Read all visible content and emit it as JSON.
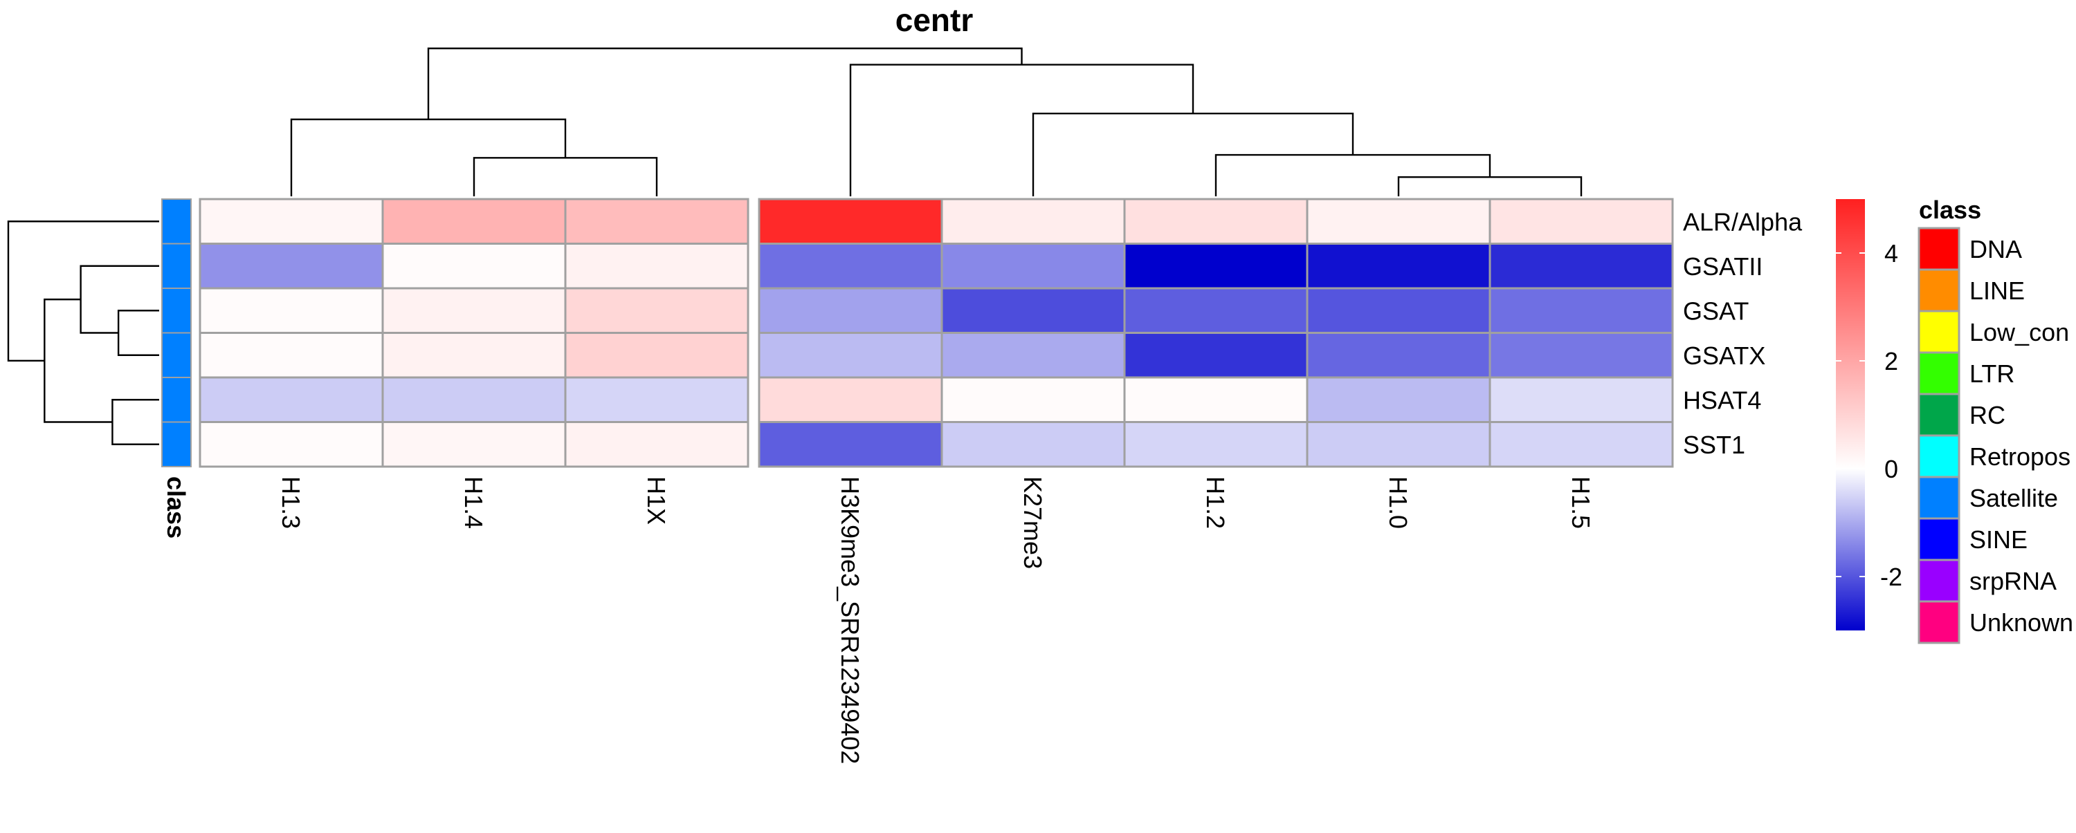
{
  "chart_data": {
    "type": "heatmap",
    "title": "centr",
    "rows": [
      "ALR/Alpha",
      "GSATII",
      "GSAT",
      "GSATX",
      "HSAT4",
      "SST1"
    ],
    "column_groups": [
      [
        "H1.3",
        "H1.4",
        "H1X"
      ],
      [
        "H3K9me3_SRR12349402",
        "K27me3",
        "H1.2",
        "H1.0",
        "H1.5"
      ]
    ],
    "columns": [
      "H1.3",
      "H1.4",
      "H1X",
      "H3K9me3_SRR12349402",
      "K27me3",
      "H1.2",
      "H1.0",
      "H1.5"
    ],
    "values": [
      [
        0.2,
        1.7,
        1.5,
        4.8,
        0.4,
        0.7,
        0.3,
        0.6
      ],
      [
        -1.3,
        0.1,
        0.3,
        -1.7,
        -1.4,
        -3.0,
        -2.8,
        -2.5
      ],
      [
        0.1,
        0.3,
        0.9,
        -1.1,
        -2.1,
        -1.9,
        -2.0,
        -1.7
      ],
      [
        0.1,
        0.3,
        1.0,
        -0.8,
        -1.0,
        -2.4,
        -1.8,
        -1.6
      ],
      [
        -0.6,
        -0.6,
        -0.5,
        0.8,
        0.1,
        0.1,
        -0.8,
        -0.4
      ],
      [
        0.1,
        0.2,
        0.3,
        -1.9,
        -0.6,
        -0.5,
        -0.6,
        -0.5
      ]
    ],
    "row_annotation": {
      "name": "class",
      "values": [
        "Satellite",
        "Satellite",
        "Satellite",
        "Satellite",
        "Satellite",
        "Satellite"
      ]
    },
    "color_scale": {
      "min": -3,
      "max": 5,
      "ticks": [
        -2,
        0,
        2,
        4
      ],
      "colors": [
        "#0000cd",
        "#ffffff",
        "#ff2020"
      ]
    },
    "class_legend": {
      "title": "class",
      "items": [
        {
          "label": "DNA",
          "color": "#ff0000"
        },
        {
          "label": "LINE",
          "color": "#ff8c00"
        },
        {
          "label": "Low_con",
          "color": "#ffff00"
        },
        {
          "label": "LTR",
          "color": "#33ff00"
        },
        {
          "label": "RC",
          "color": "#00a64a"
        },
        {
          "label": "Retropos",
          "color": "#00ffff"
        },
        {
          "label": "Satellite",
          "color": "#0080ff"
        },
        {
          "label": "SINE",
          "color": "#0000ff"
        },
        {
          "label": "srpRNA",
          "color": "#9900ff"
        },
        {
          "label": "Unknown",
          "color": "#ff0080"
        }
      ]
    },
    "column_dendrogram": {
      "tree": [
        [
          0,
          [
            1,
            2
          ]
        ],
        [
          3,
          [
            4,
            [
              5,
              [
                6,
                7
              ]
            ]
          ]
        ]
      ],
      "heights": {
        "root": 1.0,
        "g1": 0.52,
        "g1_sub": 0.26,
        "g2": 0.89,
        "g2_a": 0.56,
        "g2_b": 0.28,
        "g2_c": 0.13
      }
    },
    "row_dendrogram": {
      "tree": [
        0,
        [
          [
            1,
            [
              2,
              3
            ]
          ],
          [
            4,
            5
          ]
        ]
      ],
      "heights": {
        "root": 1.0,
        "inner": 0.76,
        "gsat_group": 0.52,
        "gsat_pair": 0.27,
        "hsat_pair": 0.31
      }
    }
  }
}
